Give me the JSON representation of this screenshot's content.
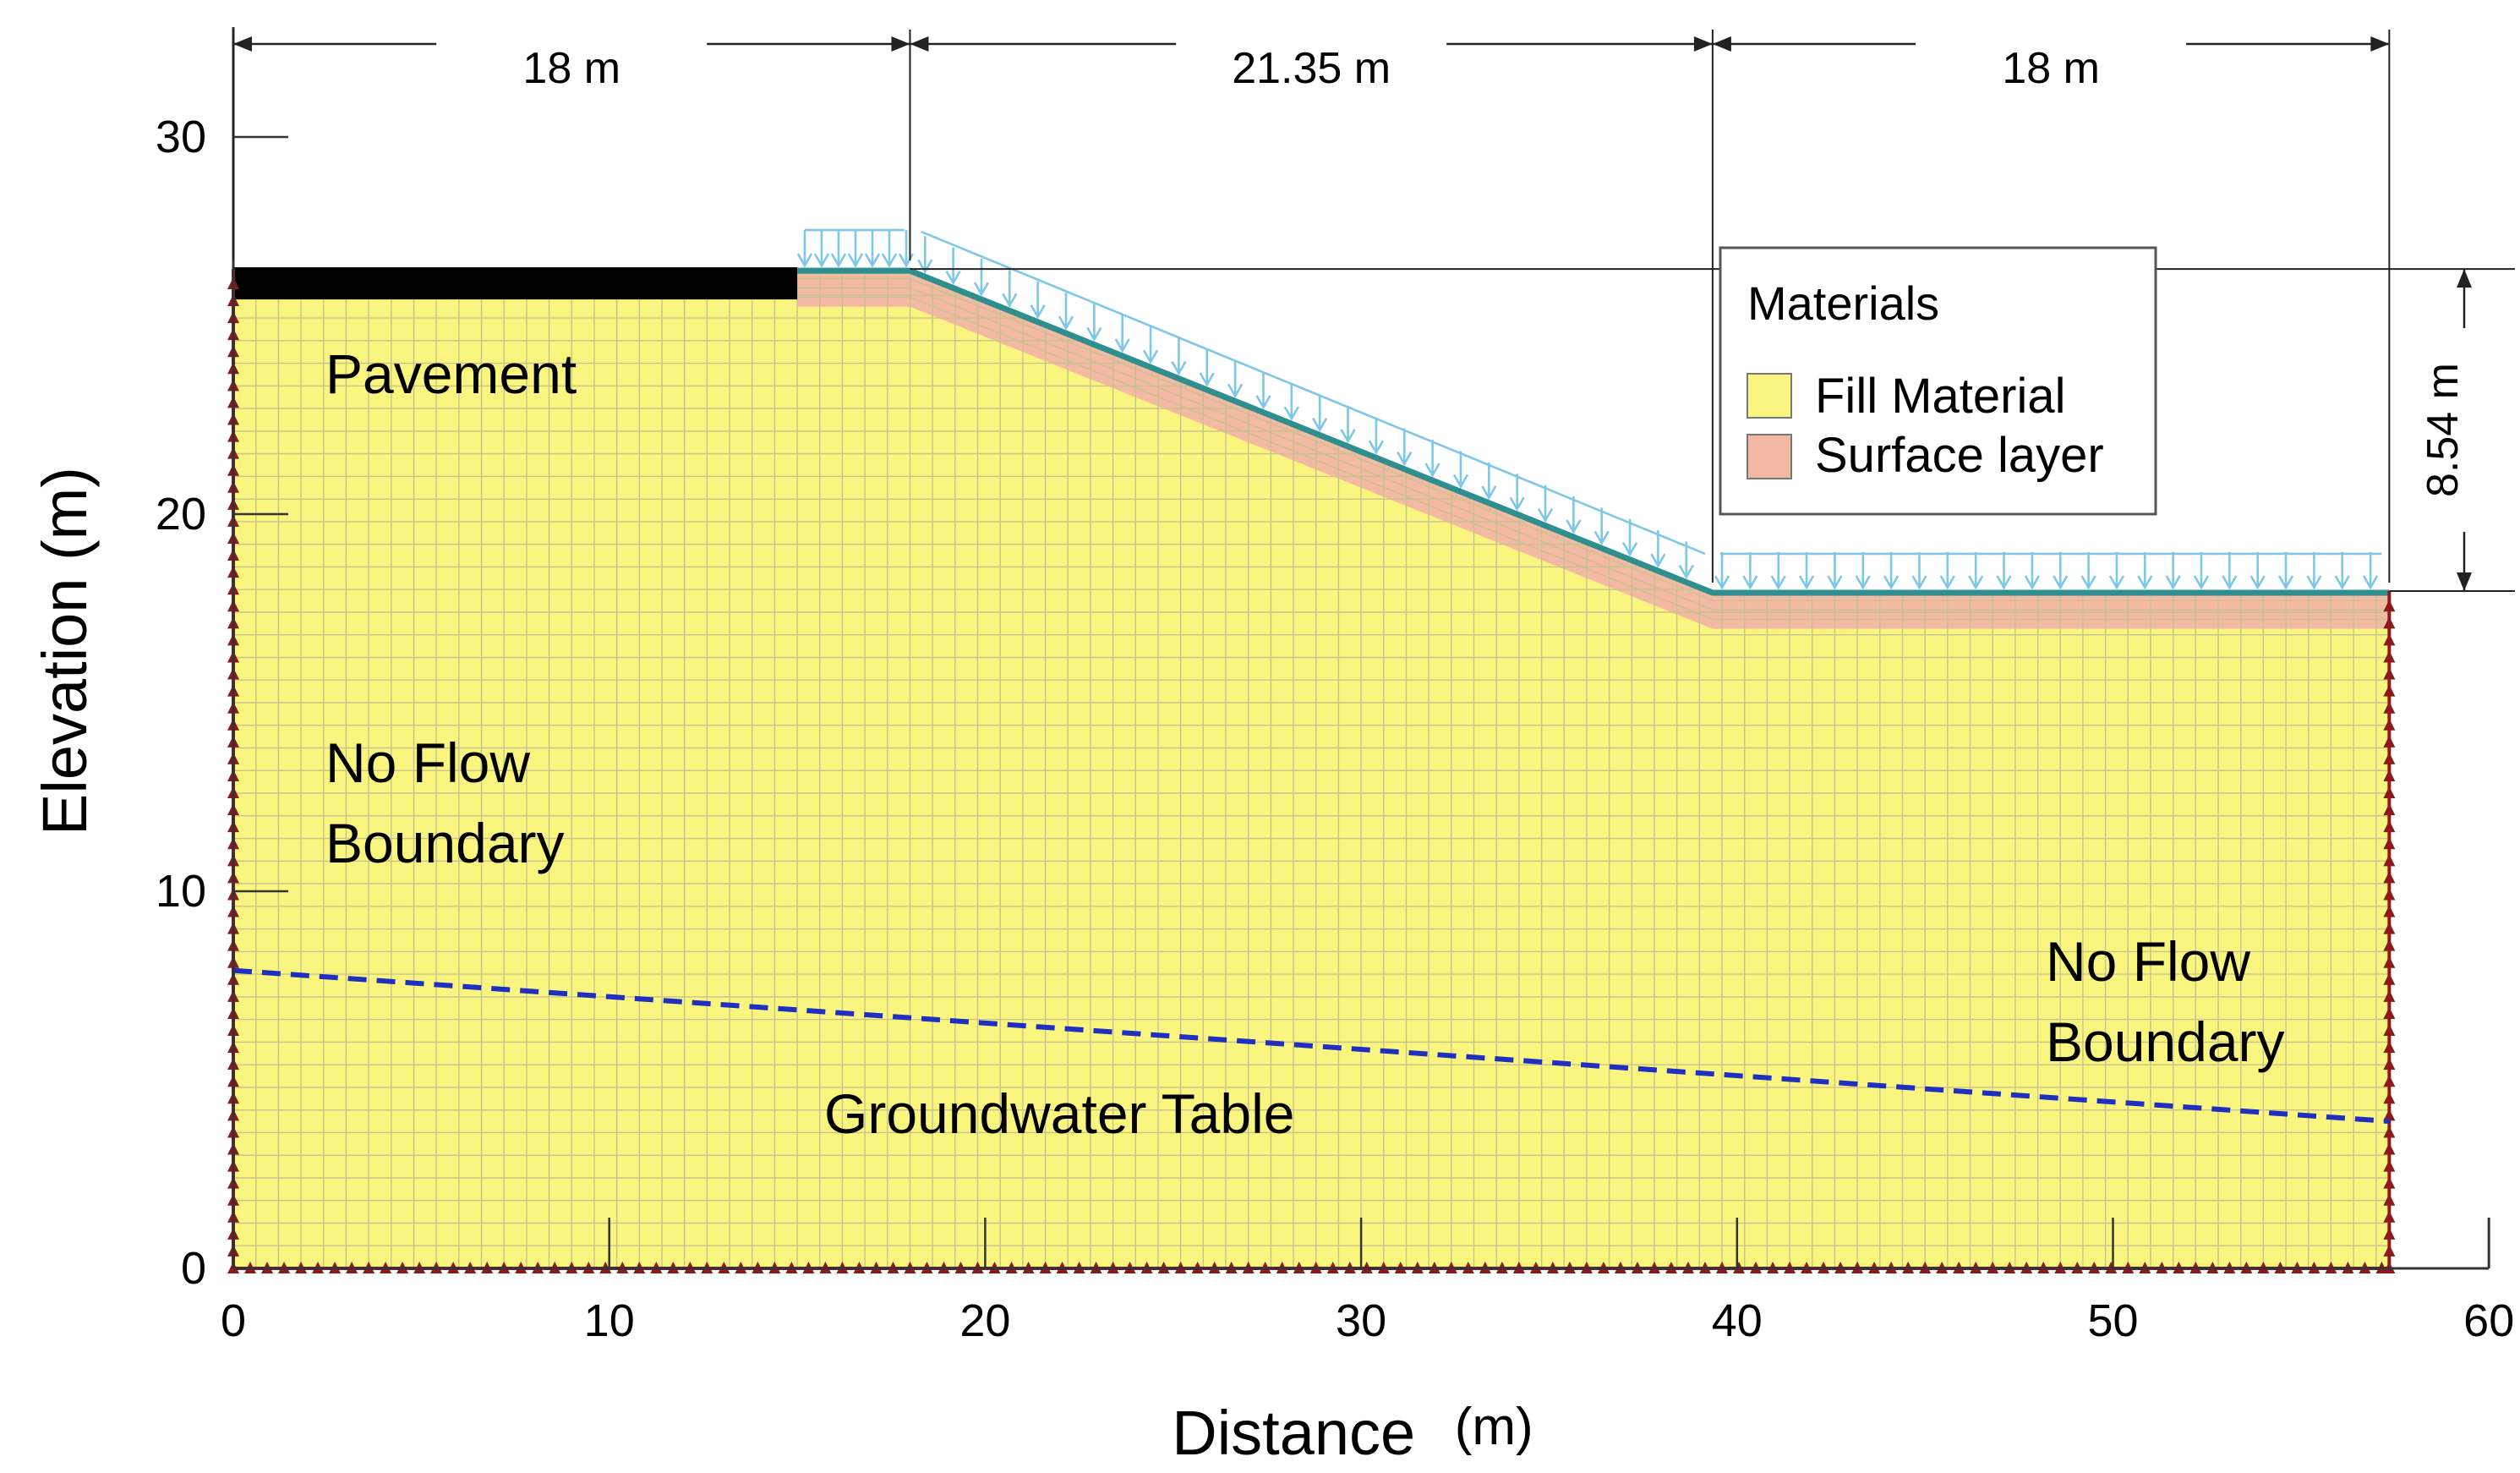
{
  "axes": {
    "xlabel": "Distance",
    "xlabel_unit": "(m)",
    "ylabel": "Elevation (m)",
    "x_ticks": [
      "0",
      "10",
      "20",
      "30",
      "40",
      "50",
      "60"
    ],
    "y_ticks": [
      "0",
      "10",
      "20",
      "30"
    ],
    "xlim": [
      0,
      60
    ],
    "ylim": [
      0,
      30
    ]
  },
  "dimensions": {
    "left_width": "18 m",
    "slope_width": "21.35 m",
    "right_width": "18 m",
    "height": "8.54 m"
  },
  "annotations": {
    "pavement": "Pavement",
    "no_flow_left_line1": "No Flow",
    "no_flow_left_line2": "Boundary",
    "no_flow_right_line1": "No Flow",
    "no_flow_right_line2": "Boundary",
    "groundwater": "Groundwater Table"
  },
  "legend": {
    "title": "Materials",
    "items": [
      {
        "label": "Fill Material",
        "color": "#f9f57e"
      },
      {
        "label": "Surface layer",
        "color": "#f4b9a2"
      }
    ]
  },
  "geometry_data": {
    "crest_x": 18,
    "toe_x": 39.35,
    "right_x": 57.35,
    "crest_elev": 26.5,
    "toe_elev": 17.96,
    "pavement_end_x": 15,
    "surface_layer_thickness": 1.0,
    "groundwater_left_elev": 7.9,
    "groundwater_right_elev": 3.9
  },
  "colors": {
    "fill": "#f9f57e",
    "surface": "#f4b9a2",
    "mesh": "#c7c38f",
    "pavement": "#000000",
    "boundary": "#8b1a1a",
    "groundwater": "#1f2fbf",
    "load": "#7fc7e8",
    "surface_line": "#2f8f8f"
  }
}
